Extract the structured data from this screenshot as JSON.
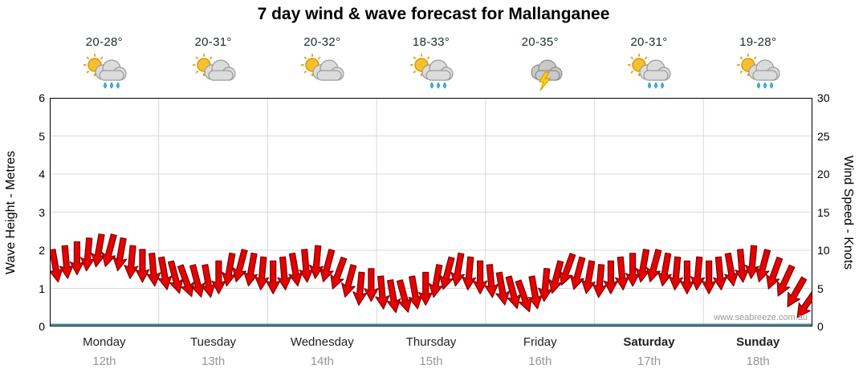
{
  "title": "7 day wind & wave forecast for Mallanganee",
  "watermark": "www.seabreeze.com.au",
  "days": [
    {
      "name": "Monday",
      "date": "12th",
      "temp": "20-28°",
      "icon": "sun-cloud-rain",
      "bold": false
    },
    {
      "name": "Tuesday",
      "date": "13th",
      "temp": "20-31°",
      "icon": "sun-cloud",
      "bold": false
    },
    {
      "name": "Wednesday",
      "date": "14th",
      "temp": "20-32°",
      "icon": "sun-cloud",
      "bold": false
    },
    {
      "name": "Thursday",
      "date": "15th",
      "temp": "18-33°",
      "icon": "sun-cloud-rain",
      "bold": false
    },
    {
      "name": "Friday",
      "date": "16th",
      "temp": "20-35°",
      "icon": "storm",
      "bold": false
    },
    {
      "name": "Saturday",
      "date": "17th",
      "temp": "20-31°",
      "icon": "sun-cloud-rain",
      "bold": true
    },
    {
      "name": "Sunday",
      "date": "18th",
      "temp": "19-28°",
      "icon": "sun-cloud-rain",
      "bold": true
    }
  ],
  "axes": {
    "left": {
      "label": "Wave Height - Metres",
      "ticks": [
        0,
        1,
        2,
        3,
        4,
        5,
        6
      ],
      "range": [
        0,
        6
      ]
    },
    "right": {
      "label": "Wind Speed - Knots",
      "ticks": [
        0,
        5,
        10,
        15,
        20,
        25,
        30
      ],
      "range": [
        0,
        30
      ]
    }
  },
  "chart_data": {
    "type": "line",
    "title": "7 day wind & wave forecast for Mallanganee",
    "categories": [
      "Monday 12th",
      "Tuesday 13th",
      "Wednesday 14th",
      "Thursday 15th",
      "Friday 16th",
      "Saturday 17th",
      "Sunday 18th"
    ],
    "points_per_day": 10,
    "ylabel_left": "Wave Height - Metres",
    "ylabel_right": "Wind Speed - Knots",
    "ylim_left": [
      0,
      6
    ],
    "ylim_right": [
      0,
      30
    ],
    "grid": true,
    "series": [
      {
        "name": "Wind Speed (knots)",
        "style": "wind-arrows",
        "arrow_fill": "#e60000",
        "arrow_stroke": "#7d0000",
        "values": [
          8,
          8.5,
          9,
          9.5,
          10,
          10,
          9.5,
          8.5,
          8,
          7.5,
          7,
          6.5,
          6,
          6,
          6,
          6.5,
          7.5,
          8,
          7.5,
          7,
          6.5,
          7,
          7.5,
          8,
          8.5,
          8,
          7,
          6,
          5,
          5.5,
          4.5,
          4,
          4,
          4.5,
          5,
          6,
          7,
          7.5,
          7,
          6.5,
          6,
          5,
          4.5,
          4,
          4.5,
          5.5,
          6.5,
          7.5,
          7,
          6.5,
          6,
          6.5,
          7,
          7.5,
          8,
          8,
          7.5,
          7,
          6.5,
          7,
          6.5,
          7,
          7.5,
          8,
          8.5,
          8,
          7,
          6,
          4.5,
          3
        ],
        "directions_deg": [
          170,
          175,
          180,
          185,
          190,
          195,
          190,
          185,
          180,
          175,
          170,
          165,
          160,
          165,
          170,
          180,
          190,
          195,
          190,
          185,
          180,
          175,
          170,
          175,
          185,
          195,
          200,
          195,
          185,
          180,
          175,
          170,
          165,
          170,
          180,
          190,
          195,
          190,
          185,
          180,
          175,
          170,
          165,
          160,
          170,
          185,
          195,
          200,
          195,
          190,
          185,
          180,
          175,
          180,
          190,
          195,
          190,
          185,
          180,
          185,
          180,
          175,
          170,
          175,
          185,
          195,
          200,
          205,
          210,
          215
        ]
      },
      {
        "name": "Wave Height (m)",
        "style": "flat-line",
        "constant_value": 0.05,
        "color": "#2a7f8f"
      }
    ],
    "grid_color": "#d9d9d9",
    "border_color": "#000000"
  }
}
